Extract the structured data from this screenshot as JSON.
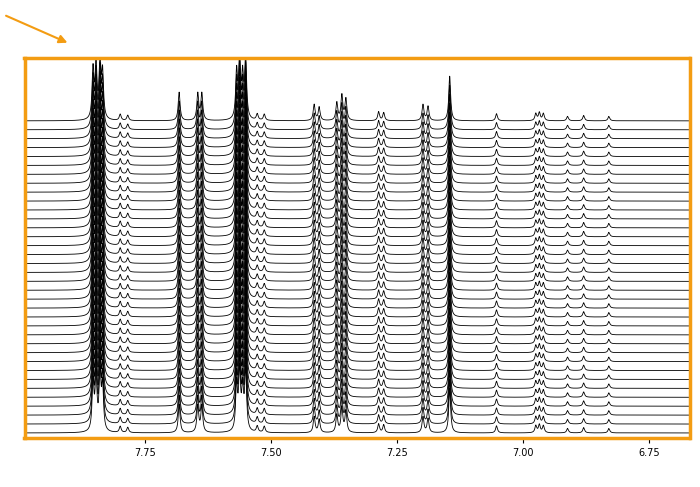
{
  "chart_data": {
    "type": "stacked_spectra",
    "xlim": [
      7.99,
      6.67
    ],
    "xticks": [
      7.75,
      {
        "value": 7.5,
        "label": "7.50"
      },
      7.25,
      {
        "value": 7.0,
        "label": "7.00"
      },
      6.75
    ],
    "ylim": [
      -0.6,
      42
    ],
    "tick_labels": "x",
    "color": "#000000",
    "spectra": 36,
    "peaks": [
      {
        "ppm": 7.854,
        "height": 5.5
      },
      {
        "ppm": 7.848,
        "height": 6.0
      },
      {
        "ppm": 7.84,
        "height": 6.2
      },
      {
        "ppm": 7.835,
        "height": 5.0
      },
      {
        "ppm": 7.8,
        "height": 0.7
      },
      {
        "ppm": 7.785,
        "height": 0.6
      },
      {
        "ppm": 7.683,
        "height": 3.2
      },
      {
        "ppm": 7.646,
        "height": 3.0
      },
      {
        "ppm": 7.638,
        "height": 3.0
      },
      {
        "ppm": 7.569,
        "height": 5.2
      },
      {
        "ppm": 7.563,
        "height": 6.5
      },
      {
        "ppm": 7.557,
        "height": 4.5
      },
      {
        "ppm": 7.551,
        "height": 6.8
      },
      {
        "ppm": 7.528,
        "height": 0.7
      },
      {
        "ppm": 7.514,
        "height": 0.7
      },
      {
        "ppm": 7.415,
        "height": 1.8
      },
      {
        "ppm": 7.405,
        "height": 1.5
      },
      {
        "ppm": 7.37,
        "height": 2.0
      },
      {
        "ppm": 7.36,
        "height": 2.8
      },
      {
        "ppm": 7.352,
        "height": 2.4
      },
      {
        "ppm": 7.287,
        "height": 1.0
      },
      {
        "ppm": 7.277,
        "height": 0.9
      },
      {
        "ppm": 7.199,
        "height": 1.8
      },
      {
        "ppm": 7.189,
        "height": 1.6
      },
      {
        "ppm": 7.146,
        "height": 5.0
      },
      {
        "ppm": 7.053,
        "height": 0.8
      },
      {
        "ppm": 6.975,
        "height": 0.8
      },
      {
        "ppm": 6.968,
        "height": 0.9
      },
      {
        "ppm": 6.96,
        "height": 0.8
      },
      {
        "ppm": 6.912,
        "height": 0.5
      },
      {
        "ppm": 6.88,
        "height": 0.6
      },
      {
        "ppm": 6.83,
        "height": 0.5
      }
    ]
  }
}
